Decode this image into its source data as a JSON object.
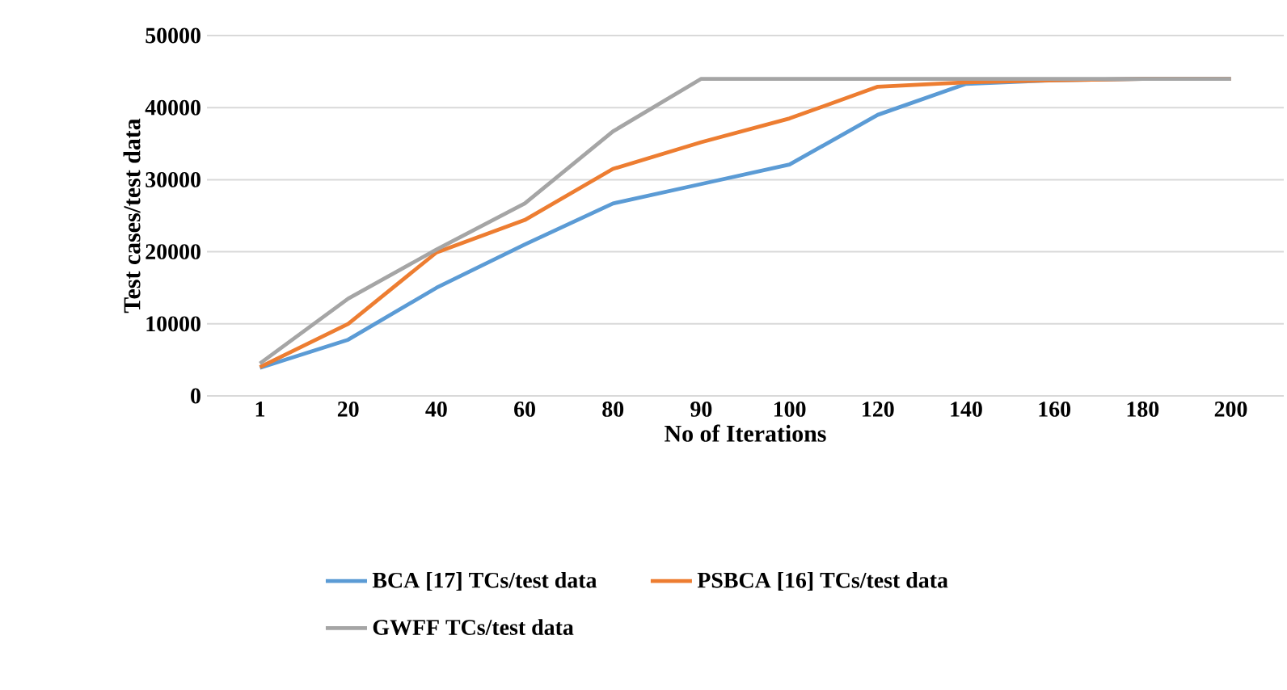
{
  "chart_data": {
    "type": "line",
    "xlabel": "No of Iterations",
    "ylabel": "Test cases/test data",
    "categories": [
      "1",
      "20",
      "40",
      "60",
      "80",
      "90",
      "100",
      "120",
      "140",
      "160",
      "180",
      "200"
    ],
    "series": [
      {
        "name": "BCA [17] TCs/test data",
        "color": "#5b9bd5",
        "values": [
          3900,
          7800,
          15000,
          21000,
          26700,
          29400,
          32100,
          39000,
          43300,
          43800,
          44000,
          44000
        ]
      },
      {
        "name": "PSBCA [16] TCs/test data",
        "color": "#ed7d31",
        "values": [
          4000,
          10000,
          19900,
          24400,
          31500,
          35200,
          38500,
          42900,
          43500,
          43800,
          44000,
          44000
        ]
      },
      {
        "name": "GWFF TCs/test data",
        "color": "#a5a5a5",
        "values": [
          4500,
          13500,
          20300,
          26700,
          36700,
          44000,
          44000,
          44000,
          44000,
          44000,
          44000,
          44000
        ]
      }
    ],
    "ylim": [
      0,
      50000
    ],
    "yticks": [
      0,
      10000,
      20000,
      30000,
      40000,
      50000
    ],
    "grid": "y",
    "legend": "bottom",
    "marker": "none",
    "line_style": "solid"
  }
}
